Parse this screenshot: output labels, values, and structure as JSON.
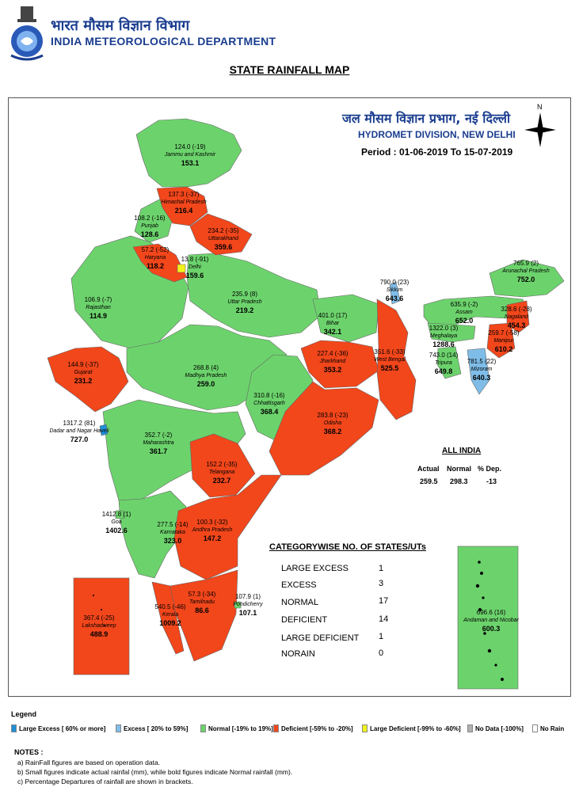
{
  "header": {
    "org_hindi": "भारत मौसम विज्ञान विभाग",
    "org_english": "INDIA METEOROLOGICAL DEPARTMENT",
    "title": "STATE RAINFALL MAP",
    "division_hindi": "जल मौसम विज्ञान प्रभाग, नई दिल्ली",
    "division_english": "HYDROMET DIVISION, NEW DELHI",
    "period": "Period : 01-06-2019 To 15-07-2019",
    "north_label": "N"
  },
  "colors": {
    "large_excess": "#1e8fd6",
    "excess": "#7fbde8",
    "normal": "#6cd36c",
    "deficient": "#f2461b",
    "large_deficient": "#f2f21a",
    "no_data": "#b0b0b0",
    "no_rain": "#ffffff"
  },
  "states": [
    {
      "name": "Jammu and Kashmir",
      "actual": "124.0 (-19)",
      "normal": "153.1",
      "category": "normal"
    },
    {
      "name": "Himachal Pradesh",
      "actual": "137.3 (-37)",
      "normal": "216.4",
      "category": "deficient"
    },
    {
      "name": "Punjab",
      "actual": "108.2 (-16)",
      "normal": "128.6",
      "category": "normal"
    },
    {
      "name": "Uttarakhand",
      "actual": "234.2 (-35)",
      "normal": "359.6",
      "category": "deficient"
    },
    {
      "name": "Haryana",
      "actual": "57.2 (-52)",
      "normal": "118.2",
      "category": "deficient"
    },
    {
      "name": "Delhi",
      "actual": "13.8 (-91)",
      "normal": "159.6",
      "category": "large_deficient"
    },
    {
      "name": "Rajasthan",
      "actual": "106.9 (-7)",
      "normal": "114.9",
      "category": "normal"
    },
    {
      "name": "Uttar Pradesh",
      "actual": "235.9 (8)",
      "normal": "219.2",
      "category": "normal"
    },
    {
      "name": "Bihar",
      "actual": "401.0 (17)",
      "normal": "342.1",
      "category": "normal"
    },
    {
      "name": "Sikkim",
      "actual": "790.0 (23)",
      "normal": "643.6",
      "category": "excess"
    },
    {
      "name": "Arunachal Pradesh",
      "actual": "765.9 (2)",
      "normal": "752.0",
      "category": "normal"
    },
    {
      "name": "Assam",
      "actual": "635.9 (-2)",
      "normal": "652.0",
      "category": "normal"
    },
    {
      "name": "Nagaland",
      "actual": "328.6 (-28)",
      "normal": "454.3",
      "category": "deficient"
    },
    {
      "name": "Meghalaya",
      "actual": "1322.0 (3)",
      "normal": "1288.6",
      "category": "normal"
    },
    {
      "name": "Manipur",
      "actual": "259.7 (-58)",
      "normal": "610.2",
      "category": "deficient"
    },
    {
      "name": "Tripura",
      "actual": "743.0 (14)",
      "normal": "649.8",
      "category": "normal"
    },
    {
      "name": "Mizoram",
      "actual": "781.5 (22)",
      "normal": "640.3",
      "category": "excess"
    },
    {
      "name": "Gujarat",
      "actual": "144.9 (-37)",
      "normal": "231.2",
      "category": "deficient"
    },
    {
      "name": "Madhya Pradesh",
      "actual": "268.8 (4)",
      "normal": "259.0",
      "category": "normal"
    },
    {
      "name": "Jharkhand",
      "actual": "227.4 (-36)",
      "normal": "353.2",
      "category": "deficient"
    },
    {
      "name": "West Bengal",
      "actual": "351.6 (-33)",
      "normal": "525.5",
      "category": "deficient"
    },
    {
      "name": "Chhattisgarh",
      "actual": "310.8 (-16)",
      "normal": "368.4",
      "category": "normal"
    },
    {
      "name": "Odisha",
      "actual": "283.8 (-23)",
      "normal": "368.2",
      "category": "deficient"
    },
    {
      "name": "Dadar and Nagar Haveli",
      "actual": "1317.2 (81)",
      "normal": "727.0",
      "category": "large_excess"
    },
    {
      "name": "Maharashtra",
      "actual": "352.7 (-2)",
      "normal": "361.7",
      "category": "normal"
    },
    {
      "name": "Telangana",
      "actual": "152.2 (-35)",
      "normal": "232.7",
      "category": "deficient"
    },
    {
      "name": "Goa",
      "actual": "1412.8 (1)",
      "normal": "1402.6",
      "category": "normal"
    },
    {
      "name": "Karnataka",
      "actual": "277.5 (-14)",
      "normal": "323.0",
      "category": "normal"
    },
    {
      "name": "Andhra Pradesh",
      "actual": "100.3 (-32)",
      "normal": "147.2",
      "category": "deficient"
    },
    {
      "name": "Lakshadweep",
      "actual": "367.4 (-25)",
      "normal": "488.9",
      "category": "deficient"
    },
    {
      "name": "Kerala",
      "actual": "540.5 (-46)",
      "normal": "1009.2",
      "category": "deficient"
    },
    {
      "name": "Tamilnadu",
      "actual": "57.3 (-34)",
      "normal": "86.6",
      "category": "deficient"
    },
    {
      "name": "Pondicherry",
      "actual": "107.9 (1)",
      "normal": "107.1",
      "category": "normal"
    },
    {
      "name": "Andaman and Nicobar",
      "actual": "696.6 (16)",
      "normal": "600.3",
      "category": "normal"
    }
  ],
  "all_india": {
    "title": "ALL INDIA",
    "headers": [
      "Actual",
      "Normal",
      "% Dep."
    ],
    "values": [
      "259.5",
      "298.3",
      "-13"
    ]
  },
  "categorywise": {
    "title": "CATEGORYWISE NO. OF STATES/UTs",
    "rows": [
      {
        "label": "LARGE EXCESS",
        "count": "1"
      },
      {
        "label": "EXCESS",
        "count": "3"
      },
      {
        "label": "NORMAL",
        "count": "17"
      },
      {
        "label": "DEFICIENT",
        "count": "14"
      },
      {
        "label": "LARGE DEFICIENT",
        "count": "1"
      },
      {
        "label": "NORAIN",
        "count": "0"
      }
    ]
  },
  "legend": {
    "title": "Legend",
    "items": [
      {
        "label": "Large Excess [ 60% or more]",
        "color": "#1e8fd6"
      },
      {
        "label": "Excess [ 20% to 59%]",
        "color": "#7fbde8"
      },
      {
        "label": "Normal [-19% to 19%]",
        "color": "#6cd36c"
      },
      {
        "label": "Deficient [-59% to -20%]",
        "color": "#f2461b"
      },
      {
        "label": "Large Deficient [-99% to -60%]",
        "color": "#f2f21a"
      },
      {
        "label": "No Data  [-100%]",
        "color": "#b0b0b0"
      },
      {
        "label": "No Rain",
        "color": "#ffffff"
      }
    ]
  },
  "notes": {
    "title": "NOTES :",
    "items": [
      "a) RainFall figures are based on operation data.",
      "b) Small figures indicate actual rainfal (mm), while bold figures indicate Normal rainfall (mm).",
      "c) Percentage Departures of rainfall are shown in brackets."
    ]
  }
}
